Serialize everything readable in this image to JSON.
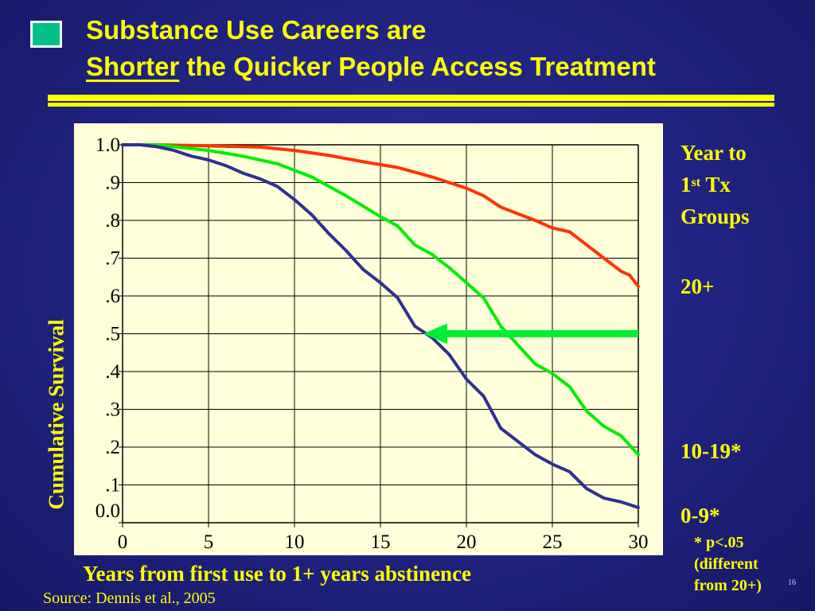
{
  "slide": {
    "title_line1": "Substance Use Careers are",
    "title_line2_underlined": "Shorter",
    "title_line2_rest": " the Quicker People Access Treatment",
    "source": "Source: Dennis et al., 2005",
    "page_number": "16"
  },
  "legend": {
    "title_prefix": "Year to",
    "title_num": "1",
    "title_sup": "st",
    "title_tx": " Tx",
    "title_groups": "Groups",
    "note": "* p<.05\n(different\nfrom 20+)"
  },
  "colors": {
    "background": "#222585",
    "text": "#ffff00",
    "plot_bg": "#ffffd9",
    "group_20plus": "#ff3300",
    "group_10_19": "#00ee00",
    "group_0_9": "#2f3092",
    "arrow": "#00ee33"
  },
  "chart_data": {
    "type": "line",
    "xlabel": "Years from first use to 1+ years abstinence",
    "ylabel": "Cumulative Survival",
    "xlim": [
      0,
      30
    ],
    "ylim": [
      0,
      1
    ],
    "x_ticks": [
      "0",
      "5",
      "10",
      "15",
      "20",
      "25",
      "30"
    ],
    "y_ticks": [
      "0.0",
      ".1",
      ".2",
      ".3",
      ".4",
      ".5",
      ".6",
      ".7",
      ".8",
      ".9",
      "1.0"
    ],
    "grid": true,
    "annotation": "arrow pointing left at survival 0.5, from x=30 to the 0-9 curve at x=17.5",
    "series": [
      {
        "name": "20+",
        "color": "#ff3300",
        "points": [
          [
            0,
            1.0
          ],
          [
            2,
            1.0
          ],
          [
            4,
            0.998
          ],
          [
            6,
            0.996
          ],
          [
            8,
            0.994
          ],
          [
            10,
            0.985
          ],
          [
            12,
            0.972
          ],
          [
            14,
            0.955
          ],
          [
            16,
            0.94
          ],
          [
            18,
            0.915
          ],
          [
            20,
            0.885
          ],
          [
            21,
            0.865
          ],
          [
            22,
            0.835
          ],
          [
            24,
            0.8
          ],
          [
            25,
            0.78
          ],
          [
            26,
            0.77
          ],
          [
            27,
            0.735
          ],
          [
            28,
            0.7
          ],
          [
            29,
            0.665
          ],
          [
            29.5,
            0.655
          ],
          [
            30,
            0.625
          ]
        ]
      },
      {
        "name": "10-19*",
        "color": "#00ee00",
        "points": [
          [
            0,
            1.0
          ],
          [
            2,
            1.0
          ],
          [
            3,
            0.995
          ],
          [
            5,
            0.985
          ],
          [
            7,
            0.97
          ],
          [
            9,
            0.95
          ],
          [
            11,
            0.915
          ],
          [
            13,
            0.865
          ],
          [
            15,
            0.81
          ],
          [
            16,
            0.785
          ],
          [
            17,
            0.735
          ],
          [
            18,
            0.71
          ],
          [
            19,
            0.675
          ],
          [
            20,
            0.635
          ],
          [
            21,
            0.595
          ],
          [
            22,
            0.52
          ],
          [
            23,
            0.47
          ],
          [
            24,
            0.42
          ],
          [
            25,
            0.395
          ],
          [
            26,
            0.36
          ],
          [
            27,
            0.295
          ],
          [
            28,
            0.255
          ],
          [
            29,
            0.23
          ],
          [
            30,
            0.18
          ]
        ]
      },
      {
        "name": "0-9*",
        "color": "#2f3092",
        "points": [
          [
            0,
            1.0
          ],
          [
            1,
            1.0
          ],
          [
            2,
            0.995
          ],
          [
            3,
            0.985
          ],
          [
            4,
            0.97
          ],
          [
            5,
            0.96
          ],
          [
            6,
            0.945
          ],
          [
            7,
            0.925
          ],
          [
            8,
            0.91
          ],
          [
            9,
            0.89
          ],
          [
            10,
            0.855
          ],
          [
            11,
            0.815
          ],
          [
            12,
            0.765
          ],
          [
            13,
            0.72
          ],
          [
            14,
            0.67
          ],
          [
            15,
            0.635
          ],
          [
            16,
            0.595
          ],
          [
            17,
            0.52
          ],
          [
            18,
            0.49
          ],
          [
            19,
            0.445
          ],
          [
            20,
            0.38
          ],
          [
            21,
            0.335
          ],
          [
            22,
            0.25
          ],
          [
            23,
            0.215
          ],
          [
            24,
            0.18
          ],
          [
            25,
            0.155
          ],
          [
            26,
            0.135
          ],
          [
            27,
            0.09
          ],
          [
            28,
            0.065
          ],
          [
            29,
            0.055
          ],
          [
            30,
            0.04
          ]
        ]
      }
    ]
  }
}
